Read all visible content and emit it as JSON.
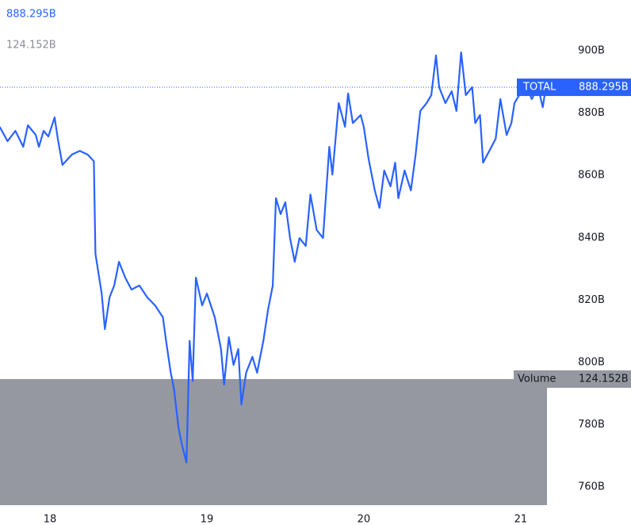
{
  "chart_data": {
    "type": "line",
    "x": [
      17.68,
      17.73,
      17.78,
      17.83,
      17.86,
      17.91,
      17.93,
      17.96,
      17.99,
      18.03,
      18.05,
      18.08,
      18.14,
      18.19,
      18.24,
      18.28,
      18.29,
      18.31,
      18.33,
      18.35,
      18.38,
      18.41,
      18.44,
      18.48,
      18.52,
      18.57,
      18.62,
      18.67,
      18.72,
      18.74,
      18.77,
      18.79,
      18.82,
      18.84,
      18.87,
      18.89,
      18.91,
      18.93,
      18.97,
      19.0,
      19.05,
      19.09,
      19.11,
      19.14,
      19.17,
      19.2,
      19.22,
      19.25,
      19.29,
      19.32,
      19.36,
      19.39,
      19.42,
      19.44,
      19.47,
      19.5,
      19.53,
      19.56,
      19.59,
      19.63,
      19.66,
      19.7,
      19.74,
      19.78,
      19.8,
      19.84,
      19.88,
      19.9,
      19.93,
      19.98,
      20.0,
      20.03,
      20.07,
      20.1,
      20.13,
      20.17,
      20.2,
      20.22,
      20.26,
      20.3,
      20.33,
      20.36,
      20.4,
      20.43,
      20.46,
      20.48,
      20.52,
      20.56,
      20.59,
      20.62,
      20.65,
      20.69,
      20.71,
      20.74,
      20.76,
      20.8,
      20.84,
      20.87,
      20.91,
      20.94,
      20.96,
      20.99,
      21.02,
      21.07,
      21.11,
      21.14,
      21.16
    ],
    "series": [
      {
        "name": "TOTAL",
        "color": "#2962ff",
        "values": [
          875.6,
          871.0,
          874.3,
          869.2,
          876.1,
          873.0,
          869.2,
          874.3,
          872.5,
          878.6,
          871.8,
          863.4,
          866.7,
          867.9,
          866.7,
          864.6,
          834.9,
          828.5,
          822.1,
          810.7,
          820.9,
          824.7,
          832.3,
          827.2,
          823.4,
          824.7,
          820.9,
          818.3,
          814.5,
          806.9,
          796.7,
          791.6,
          778.9,
          773.8,
          767.9,
          806.9,
          794.1,
          827.2,
          818.3,
          822.1,
          814.5,
          804.3,
          792.9,
          808.1,
          799.2,
          804.3,
          786.5,
          796.7,
          801.8,
          796.7,
          806.9,
          817.0,
          824.7,
          852.7,
          847.6,
          851.4,
          839.9,
          832.3,
          839.9,
          837.4,
          853.9,
          842.5,
          839.9,
          869.2,
          860.3,
          883.2,
          875.6,
          886.3,
          876.8,
          879.4,
          875.6,
          865.4,
          855.2,
          849.6,
          861.6,
          856.5,
          864.1,
          852.7,
          861.6,
          855.2,
          866.7,
          880.7,
          883.2,
          885.8,
          898.5,
          888.3,
          883.2,
          887.0,
          880.7,
          899.5,
          885.8,
          888.3,
          876.8,
          879.4,
          864.1,
          867.9,
          871.8,
          884.5,
          873.0,
          876.8,
          883.2,
          885.8,
          890.8,
          884.5,
          888.3,
          881.9,
          888.295
        ],
        "last_value": 888.295,
        "last_value_label": "888.295B"
      }
    ],
    "volume": {
      "name": "Volume",
      "value": 124.152,
      "value_label": "124.152B",
      "color": "#9598a1"
    },
    "xlim": [
      17.682,
      21.167
    ],
    "xticks": [
      18,
      19,
      20,
      21
    ],
    "ylim": [
      754.2,
      916.3
    ],
    "yticks": [
      {
        "value": 760,
        "label": "760B"
      },
      {
        "value": 780,
        "label": "780B"
      },
      {
        "value": 800,
        "label": "800B"
      },
      {
        "value": 820,
        "label": "820B"
      },
      {
        "value": 840,
        "label": "840B"
      },
      {
        "value": 860,
        "label": "860B"
      },
      {
        "value": 880,
        "label": "880B"
      },
      {
        "value": 900,
        "label": "900B"
      }
    ]
  }
}
